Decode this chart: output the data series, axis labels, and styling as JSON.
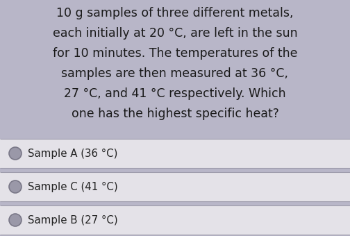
{
  "question_lines": [
    "10 g samples of three different metals,",
    "each initially at 20 °C, are left in the sun",
    "for 10 minutes. The temperatures of the",
    "samples are then measured at 36 °C,",
    "27 °C, and 41 °C respectively. Which",
    "one has the highest specific heat?"
  ],
  "options": [
    "Sample A (36 °C)",
    "Sample C (41 °C)",
    "Sample B (27 °C)"
  ],
  "bg_color": "#b8b6c8",
  "option_bg_color": "#e4e2e8",
  "option_separator_color": "#9e9cac",
  "question_text_color": "#1a1a1a",
  "option_text_color": "#222222",
  "circle_fill_color": "#9a98a8",
  "circle_edge_color": "#7a7888",
  "question_fontsize": 12.5,
  "option_fontsize": 10.8,
  "fig_width": 5.04,
  "fig_height": 3.4,
  "dpi": 100
}
